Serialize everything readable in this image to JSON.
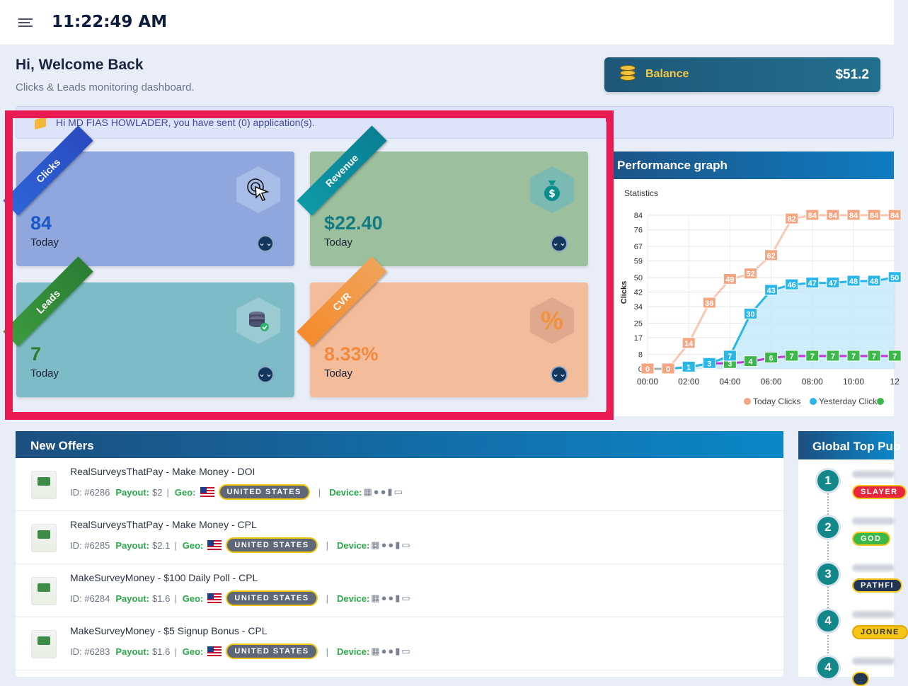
{
  "header": {
    "time": "11:22:49 AM"
  },
  "welcome": {
    "title": "Hi, Welcome Back",
    "subtitle": "Clicks & Leads monitoring dashboard."
  },
  "balance": {
    "label": "Balance",
    "value": "$51.2"
  },
  "notice": {
    "text": "Hi MD FIAS HOWLADER, you have sent (0) application(s)."
  },
  "cards": [
    {
      "ribbon": "Clicks",
      "value": "84",
      "sub": "Today"
    },
    {
      "ribbon": "Revenue",
      "value": "$22.40",
      "sub": "Today"
    },
    {
      "ribbon": "Leads",
      "value": "7",
      "sub": "Today"
    },
    {
      "ribbon": "CVR",
      "value": "8.33%",
      "sub": "Today"
    }
  ],
  "performance": {
    "title": "Performance graph"
  },
  "chart_data": {
    "type": "line",
    "title": "Statistics",
    "ylabel": "Clicks",
    "ylim": [
      0,
      84
    ],
    "yticks": [
      0,
      8,
      17,
      25,
      34,
      42,
      50,
      59,
      67,
      76,
      84
    ],
    "xticks": [
      "00:00",
      "02:00",
      "04:00",
      "06:00",
      "08:00",
      "10:00",
      "12"
    ],
    "x": [
      0,
      1,
      2,
      3,
      4,
      5,
      6,
      7,
      8,
      9,
      10,
      11,
      12
    ],
    "series": [
      {
        "name": "Today Clicks",
        "color": "#f4a582",
        "values": [
          0,
          0,
          14,
          36,
          49,
          52,
          62,
          82,
          84,
          84,
          84,
          84,
          84
        ]
      },
      {
        "name": "Yesterday Clicks",
        "color": "#29b6e8",
        "values": [
          0,
          0,
          1,
          3,
          7,
          30,
          43,
          46,
          47,
          47,
          48,
          48,
          50
        ]
      },
      {
        "name": "",
        "color": "#c23ad4",
        "values": [
          0,
          0,
          1,
          3,
          3,
          4,
          6,
          7,
          7,
          7,
          7,
          7,
          7
        ]
      }
    ],
    "legend": [
      "Today Clicks",
      "Yesterday Clicks"
    ],
    "legend_position": "bottom",
    "grid": true
  },
  "offers": {
    "title": "New Offers",
    "items": [
      {
        "title": "RealSurveysThatPay - Make Money - DOI",
        "id": "ID: #6286",
        "payout_label": "Payout:",
        "payout": "$2",
        "geo_label": "Geo:",
        "country": "UNITED STATES",
        "device_label": "Device:"
      },
      {
        "title": "RealSurveysThatPay - Make Money - CPL",
        "id": "ID: #6285",
        "payout_label": "Payout:",
        "payout": "$2.1",
        "geo_label": "Geo:",
        "country": "UNITED STATES",
        "device_label": "Device:"
      },
      {
        "title": "MakeSurveyMoney - $100 Daily Poll - CPL",
        "id": "ID: #6284",
        "payout_label": "Payout:",
        "payout": "$1.6",
        "geo_label": "Geo:",
        "country": "UNITED STATES",
        "device_label": "Device:"
      },
      {
        "title": "MakeSurveyMoney - $5 Signup Bonus - CPL",
        "id": "ID: #6283",
        "payout_label": "Payout:",
        "payout": "$1.6",
        "geo_label": "Geo:",
        "country": "UNITED STATES",
        "device_label": "Device:"
      }
    ]
  },
  "global_top": {
    "title": "Global Top Pub",
    "ranks": [
      {
        "rank": "1",
        "tag": "SLAYER"
      },
      {
        "rank": "2",
        "tag": "GOD"
      },
      {
        "rank": "3",
        "tag": "PATHFI"
      },
      {
        "rank": "4",
        "tag": "JOURNE"
      },
      {
        "rank": "4",
        "tag": ""
      }
    ]
  }
}
